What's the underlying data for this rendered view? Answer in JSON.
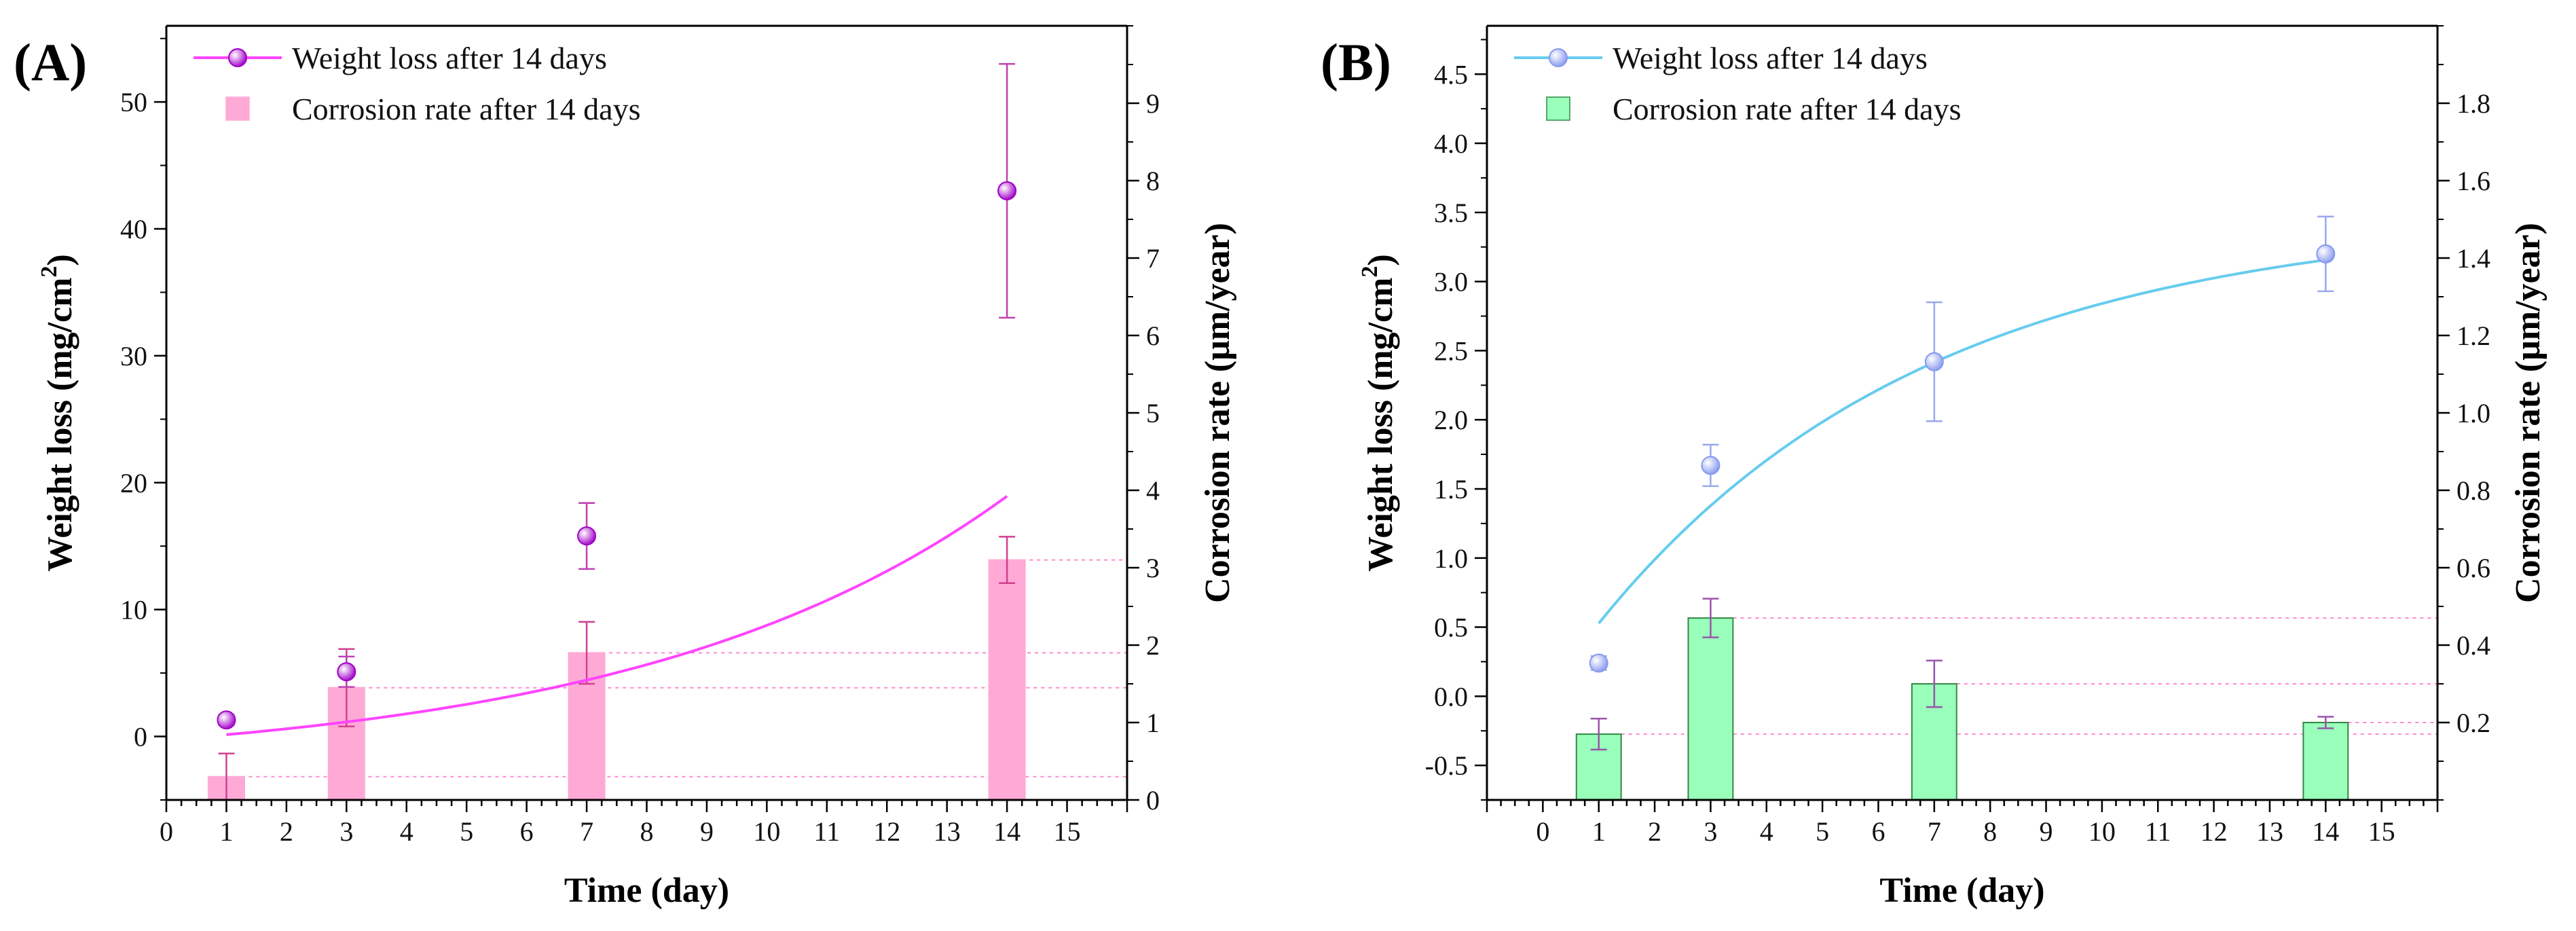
{
  "chart_data": [
    {
      "panel_label": "(A)",
      "type": "bar+line",
      "xlabel": "Time (day)",
      "ylabel": "Weight loss (mg/cm",
      "ylabel_sup": "2",
      "ylabel_close": ")",
      "y2label": "Corrosion rate (μm/year)",
      "x_ticks": [
        "0",
        "1",
        "2",
        "3",
        "4",
        "5",
        "6",
        "7",
        "8",
        "9",
        "10",
        "11",
        "12",
        "13",
        "14",
        "15"
      ],
      "xlim": [
        0,
        16
      ],
      "y_ticks": [
        "0",
        "10",
        "20",
        "30",
        "40",
        "50"
      ],
      "ylim": [
        -5,
        56
      ],
      "y2_ticks": [
        "0",
        "1",
        "2",
        "3",
        "4",
        "5",
        "6",
        "7",
        "8",
        "9"
      ],
      "y2lim": [
        0,
        10
      ],
      "legend": [
        "Weight loss after 14 days",
        "Corrosion rate after 14 days"
      ],
      "colors": {
        "line": "#ff44ff",
        "marker": "#a000c8",
        "bar": "#ffaad6",
        "bar_stroke": "#ffaad6",
        "ref": "#ff88cc"
      },
      "weight_loss": {
        "x": [
          1,
          3,
          7,
          14
        ],
        "y": [
          1.3,
          5.1,
          15.8,
          43.0
        ],
        "err": [
          0.4,
          1.2,
          2.6,
          10.0
        ]
      },
      "fit_curve": {
        "a": 2.25,
        "b": 0.161,
        "c": -2.5,
        "x_start": 1,
        "x_end": 14
      },
      "corrosion_rate": {
        "x": [
          1,
          3,
          7,
          14
        ],
        "y": [
          0.3,
          1.45,
          1.9,
          3.1
        ],
        "err": [
          0.3,
          0.5,
          0.4,
          0.3
        ]
      }
    },
    {
      "panel_label": "(B)",
      "type": "bar+line",
      "xlabel": "Time (day)",
      "ylabel": "Weight loss (mg/cm",
      "ylabel_sup": "2",
      "ylabel_close": ")",
      "y2label": "Corrosion rate (μm/year)",
      "x_ticks": [
        "0",
        "1",
        "2",
        "3",
        "4",
        "5",
        "6",
        "7",
        "8",
        "9",
        "10",
        "11",
        "12",
        "13",
        "14",
        "15"
      ],
      "xlim": [
        -1,
        16
      ],
      "y_ticks": [
        "-0.5",
        "0.0",
        "0.5",
        "1.0",
        "1.5",
        "2.0",
        "2.5",
        "3.0",
        "3.5",
        "4.0",
        "4.5"
      ],
      "ylim": [
        -0.75,
        4.85
      ],
      "y2_ticks": [
        "0.2",
        "0.4",
        "0.6",
        "0.8",
        "1.0",
        "1.2",
        "1.4",
        "1.6",
        "1.8"
      ],
      "y2lim": [
        0,
        2.0
      ],
      "legend": [
        "Weight loss after 14 days",
        "Corrosion rate after 14 days"
      ],
      "colors": {
        "line": "#66ccee",
        "marker": "#8899ee",
        "bar": "#99ffbb",
        "bar_stroke": "#338844",
        "ref": "#ff88cc"
      },
      "weight_loss": {
        "x": [
          1,
          3,
          7,
          14
        ],
        "y": [
          0.24,
          1.67,
          2.42,
          3.2
        ],
        "err": [
          0.05,
          0.15,
          0.43,
          0.27
        ]
      },
      "fit_curve": {
        "a": 3.5,
        "b": 0.17,
        "c": 3.48,
        "x_start": 1,
        "x_end": 14
      },
      "corrosion_rate": {
        "x": [
          1,
          3,
          7,
          14
        ],
        "y": [
          0.17,
          0.47,
          0.3,
          0.2
        ],
        "err": [
          0.04,
          0.05,
          0.06,
          0.015
        ]
      }
    }
  ]
}
